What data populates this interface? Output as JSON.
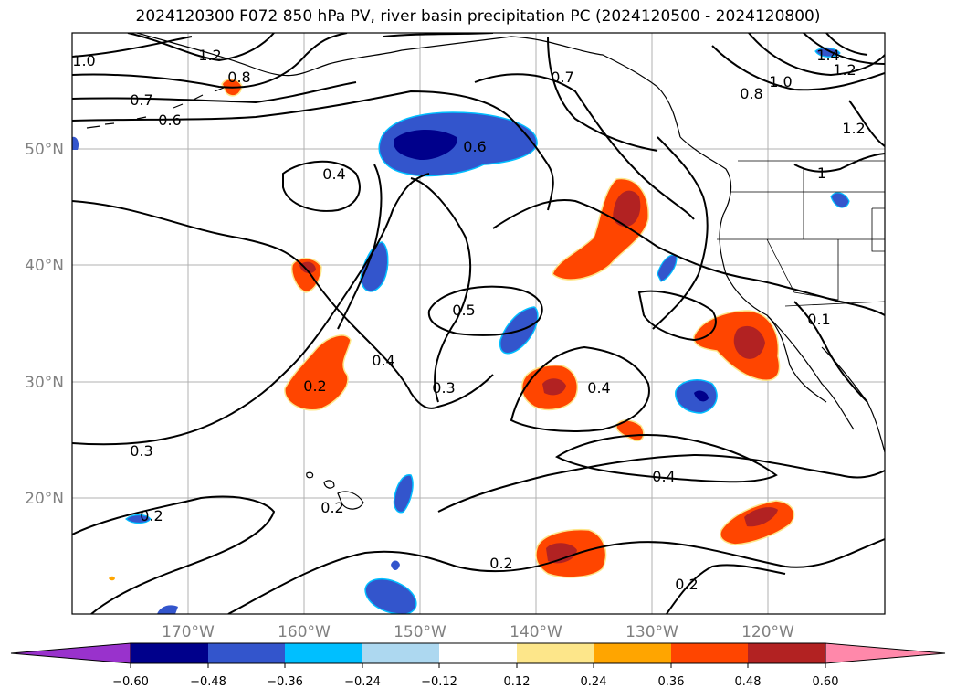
{
  "title": "2024120300 F072 850 hPa PV, river basin precipitation PC (2024120500 - 2024120800)",
  "map": {
    "lat_labels": [
      "50°N",
      "40°N",
      "30°N",
      "20°N"
    ],
    "lon_labels": [
      "170°W",
      "160°W",
      "150°W",
      "140°W",
      "130°W",
      "120°W"
    ],
    "contour_labels": [
      "1.0",
      "1.2",
      "0.8",
      "0.7",
      "0.6",
      "0.6",
      "0.4",
      "0.7",
      "1.4",
      "1.0",
      "0.8",
      "1.2",
      "1.2",
      "1",
      "0.5",
      "0.4",
      "0.3",
      "0.2",
      "0.4",
      "0.3",
      "0.4",
      "0.2",
      "0.2",
      "0.2",
      "0.2",
      "0.1"
    ],
    "contour_colors": {
      "line": "#000000",
      "grid": "#b0b0b0",
      "coast": "#000000"
    }
  },
  "colorbar": {
    "colors": [
      "#9932cc",
      "#00008b",
      "#3355cc",
      "#00bfff",
      "#add8f0",
      "#ffffff",
      "#fde68a",
      "#ffa500",
      "#ff4500",
      "#b22222",
      "#ff88aa"
    ],
    "tick_labels": [
      "−0.60",
      "−0.48",
      "−0.36",
      "−0.24",
      "−0.12",
      "0.12",
      "0.24",
      "0.36",
      "0.48",
      "0.60"
    ]
  }
}
